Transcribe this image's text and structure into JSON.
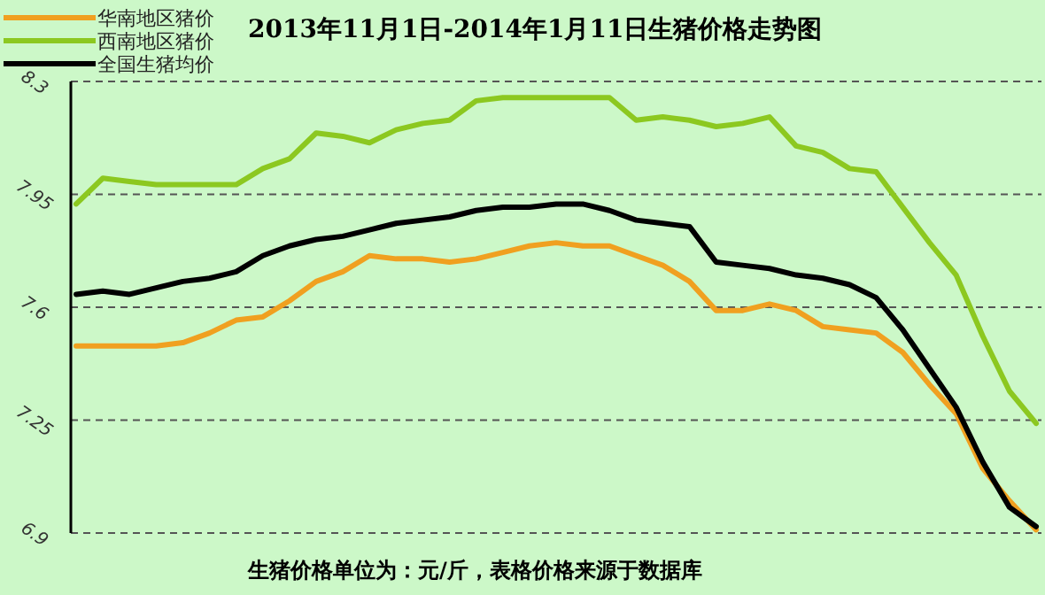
{
  "chart_data": {
    "type": "line",
    "title": "2013年11月1日-2014年1月11日生猪价格走势图",
    "annotations": [
      "生猪价格单位为：元/斤，表格价格来源于数据库"
    ],
    "categories": [
      null,
      null,
      null,
      null,
      null,
      null,
      null,
      null,
      null,
      null,
      null,
      null,
      null,
      null,
      null,
      null,
      null,
      null,
      null,
      null,
      null,
      null,
      null,
      null,
      null,
      null,
      null,
      null,
      null,
      null,
      null,
      null,
      null,
      null,
      null,
      null,
      null
    ],
    "ylim": [
      6.9,
      8.3
    ],
    "yticks": [
      6.9,
      7.25,
      7.6,
      7.95,
      8.3
    ],
    "grid": "y",
    "legend": "top left",
    "marker": "none",
    "line_style": "solid",
    "series": [
      {
        "name": "华南地区猪价",
        "color": "#f0a020",
        "values": [
          7.48,
          7.48,
          7.48,
          7.48,
          7.49,
          7.52,
          7.56,
          7.57,
          7.62,
          7.68,
          7.71,
          7.76,
          7.75,
          7.75,
          7.74,
          7.75,
          7.77,
          7.79,
          7.8,
          7.79,
          7.79,
          7.76,
          7.73,
          7.68,
          7.59,
          7.59,
          7.61,
          7.59,
          7.54,
          7.53,
          7.52,
          7.46,
          7.36,
          7.27,
          7.1,
          7.0,
          6.91
        ]
      },
      {
        "name": "西南地区猪价",
        "color": "#8cc820",
        "values": [
          7.92,
          8.0,
          7.99,
          7.98,
          7.98,
          7.98,
          7.98,
          8.03,
          8.06,
          8.14,
          8.13,
          8.11,
          8.15,
          8.17,
          8.18,
          8.24,
          8.25,
          8.25,
          8.25,
          8.25,
          8.25,
          8.18,
          8.19,
          8.18,
          8.16,
          8.17,
          8.19,
          8.1,
          8.08,
          8.03,
          8.02,
          7.91,
          7.8,
          7.7,
          7.51,
          7.34,
          7.24
        ]
      },
      {
        "name": "全国生猪均价",
        "color": "#000000",
        "values": [
          7.64,
          7.65,
          7.64,
          7.66,
          7.68,
          7.69,
          7.71,
          7.76,
          7.79,
          7.81,
          7.82,
          7.84,
          7.86,
          7.87,
          7.88,
          7.9,
          7.91,
          7.91,
          7.92,
          7.92,
          7.9,
          7.87,
          7.86,
          7.85,
          7.74,
          7.73,
          7.72,
          7.7,
          7.69,
          7.67,
          7.63,
          7.53,
          7.41,
          7.29,
          7.12,
          6.98,
          6.92
        ]
      }
    ]
  }
}
